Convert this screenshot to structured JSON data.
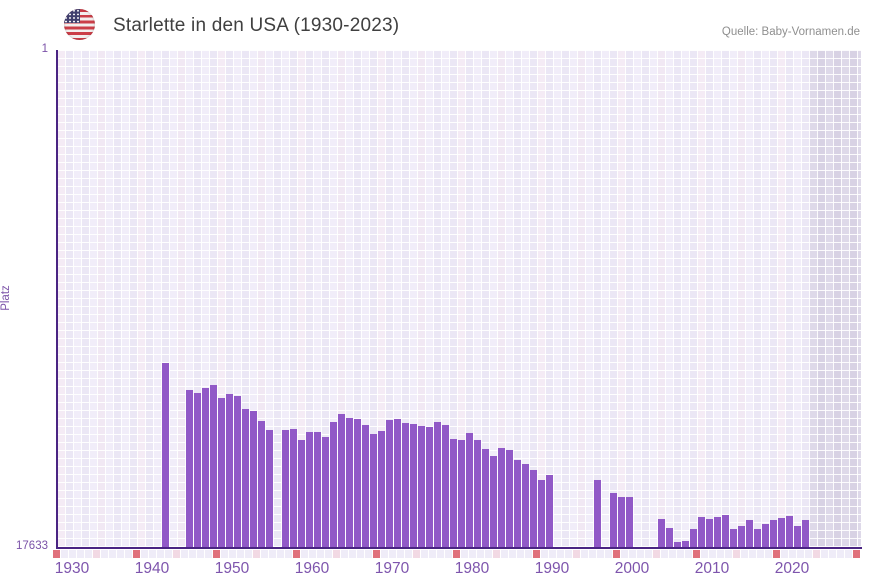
{
  "header": {
    "title": "Starlette in den USA (1930-2023)",
    "source": "Quelle: Baby-Vornamen.de",
    "flag_icon": "us-flag-icon"
  },
  "axes": {
    "y_label": "Platz",
    "y_top_label": "1",
    "y_bottom_label": "17633"
  },
  "colors": {
    "bar": "#9159c7",
    "axis_line": "#4a2483",
    "tick_label": "#7e55ad",
    "grid_cell": "#ece8f6",
    "future_band_cell": "#dbd5e6",
    "ruler_major": "#e0717c",
    "ruler_minor": "#f2d9e4",
    "ruler_base": "#efecf8",
    "title_text": "#404040",
    "source_text": "#8f8f8f"
  },
  "chart_data": {
    "type": "bar",
    "title": "Starlette in den USA (1930-2023)",
    "xlabel": "",
    "ylabel": "Platz",
    "y_axis": {
      "top_value": 1,
      "bottom_value": 17633,
      "inverted": true,
      "note": "rank 1 = best, bars grow upward from 17633 baseline toward 1"
    },
    "x_range": [
      1929,
      2030
    ],
    "x_ticks": [
      1930,
      1940,
      1950,
      1960,
      1970,
      1980,
      1990,
      2000,
      2010,
      2020
    ],
    "no_data_after": 2022,
    "legend": null,
    "grid": "checkered-lavender",
    "ruler": {
      "major_every": 10,
      "minor_every": 5
    },
    "points": [
      {
        "year": 1942,
        "rank": 11100
      },
      {
        "year": 1945,
        "rank": 12050
      },
      {
        "year": 1946,
        "rank": 12170
      },
      {
        "year": 1947,
        "rank": 12000
      },
      {
        "year": 1948,
        "rank": 11900
      },
      {
        "year": 1949,
        "rank": 12360
      },
      {
        "year": 1950,
        "rank": 12190
      },
      {
        "year": 1951,
        "rank": 12290
      },
      {
        "year": 1952,
        "rank": 12750
      },
      {
        "year": 1953,
        "rank": 12810
      },
      {
        "year": 1954,
        "rank": 13150
      },
      {
        "year": 1955,
        "rank": 13480
      },
      {
        "year": 1957,
        "rank": 13490
      },
      {
        "year": 1958,
        "rank": 13460
      },
      {
        "year": 1959,
        "rank": 13850
      },
      {
        "year": 1960,
        "rank": 13550
      },
      {
        "year": 1961,
        "rank": 13550
      },
      {
        "year": 1962,
        "rank": 13720
      },
      {
        "year": 1963,
        "rank": 13200
      },
      {
        "year": 1964,
        "rank": 12910
      },
      {
        "year": 1965,
        "rank": 13060
      },
      {
        "year": 1966,
        "rank": 13100
      },
      {
        "year": 1967,
        "rank": 13320
      },
      {
        "year": 1968,
        "rank": 13620
      },
      {
        "year": 1969,
        "rank": 13530
      },
      {
        "year": 1970,
        "rank": 13130
      },
      {
        "year": 1971,
        "rank": 13090
      },
      {
        "year": 1972,
        "rank": 13240
      },
      {
        "year": 1973,
        "rank": 13270
      },
      {
        "year": 1974,
        "rank": 13340
      },
      {
        "year": 1975,
        "rank": 13380
      },
      {
        "year": 1976,
        "rank": 13210
      },
      {
        "year": 1977,
        "rank": 13300
      },
      {
        "year": 1978,
        "rank": 13810
      },
      {
        "year": 1979,
        "rank": 13830
      },
      {
        "year": 1980,
        "rank": 13590
      },
      {
        "year": 1981,
        "rank": 13840
      },
      {
        "year": 1982,
        "rank": 14150
      },
      {
        "year": 1983,
        "rank": 14390
      },
      {
        "year": 1984,
        "rank": 14110
      },
      {
        "year": 1985,
        "rank": 14190
      },
      {
        "year": 1986,
        "rank": 14550
      },
      {
        "year": 1987,
        "rank": 14700
      },
      {
        "year": 1988,
        "rank": 14900
      },
      {
        "year": 1989,
        "rank": 15250
      },
      {
        "year": 1990,
        "rank": 15090
      },
      {
        "year": 1996,
        "rank": 15260
      },
      {
        "year": 1998,
        "rank": 15720
      },
      {
        "year": 1999,
        "rank": 15870
      },
      {
        "year": 2000,
        "rank": 15870
      },
      {
        "year": 2004,
        "rank": 16640
      },
      {
        "year": 2005,
        "rank": 16960
      },
      {
        "year": 2006,
        "rank": 17460
      },
      {
        "year": 2007,
        "rank": 17420
      },
      {
        "year": 2008,
        "rank": 17000
      },
      {
        "year": 2009,
        "rank": 16570
      },
      {
        "year": 2010,
        "rank": 16640
      },
      {
        "year": 2011,
        "rank": 16570
      },
      {
        "year": 2012,
        "rank": 16500
      },
      {
        "year": 2013,
        "rank": 17000
      },
      {
        "year": 2014,
        "rank": 16890
      },
      {
        "year": 2015,
        "rank": 16680
      },
      {
        "year": 2016,
        "rank": 17000
      },
      {
        "year": 2017,
        "rank": 16820
      },
      {
        "year": 2018,
        "rank": 16680
      },
      {
        "year": 2019,
        "rank": 16610
      },
      {
        "year": 2020,
        "rank": 16530
      },
      {
        "year": 2021,
        "rank": 16890
      },
      {
        "year": 2022,
        "rank": 16680
      }
    ]
  }
}
